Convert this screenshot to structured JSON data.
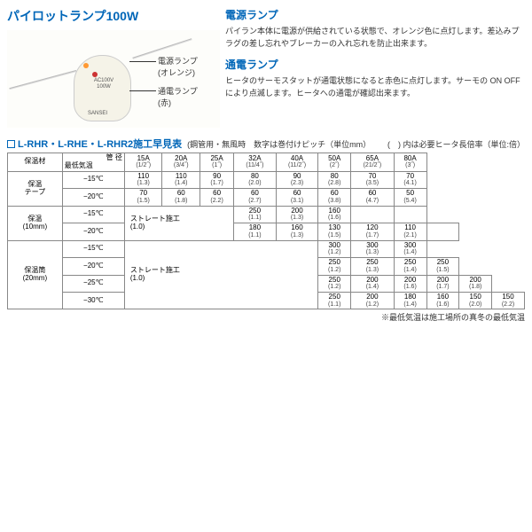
{
  "product_title": "パイロットランプ100W",
  "callouts": {
    "power": "電源ランプ\n(オレンジ)",
    "current": "通電ランプ\n(赤)"
  },
  "device": {
    "spec1": "AC100V",
    "spec2": "100W",
    "brand": "SANSEI"
  },
  "descriptions": {
    "power_heading": "電源ランプ",
    "power_text": "パイラン本体に電源が供給されている状態で、オレンジ色に点灯します。差込みプラグの差し忘れやブレーカーの入れ忘れを防止出来ます。",
    "current_heading": "通電ランプ",
    "current_text": "ヒータのサーモスタットが通電状態になると赤色に点灯します。サーモの ON OFF により点滅します。ヒータへの通電が確認出来ます。"
  },
  "table": {
    "title": "L-RHR・L-RHE・L-RHR2施工早見表",
    "subtitle": "(鋼管用・無風時　数字は巻付けピッチ（単位mm）",
    "note_right": "(　) 内は必要ヒータ長倍率（単位:倍）",
    "col_labels": {
      "material": "保温材",
      "pipe": "管 径",
      "temp": "最低気温"
    },
    "cols": [
      {
        "m": "15A",
        "s": "(1/2˝)"
      },
      {
        "m": "20A",
        "s": "(3/4˝)"
      },
      {
        "m": "25A",
        "s": "(1˝)"
      },
      {
        "m": "32A",
        "s": "(11/4˝)"
      },
      {
        "m": "40A",
        "s": "(11/2˝)"
      },
      {
        "m": "50A",
        "s": "(2˝)"
      },
      {
        "m": "65A",
        "s": "(21/2˝)"
      },
      {
        "m": "80A",
        "s": "(3˝)"
      }
    ],
    "groups": [
      {
        "name": "保温\nテープ",
        "rows": [
          {
            "t": "−15℃",
            "c": [
              {
                "m": "110",
                "s": "(1.3)"
              },
              {
                "m": "110",
                "s": "(1.4)"
              },
              {
                "m": "90",
                "s": "(1.7)"
              },
              {
                "m": "80",
                "s": "(2.0)"
              },
              {
                "m": "90",
                "s": "(2.3)"
              },
              {
                "m": "80",
                "s": "(2.8)"
              },
              {
                "m": "70",
                "s": "(3.5)"
              },
              {
                "m": "70",
                "s": "(4.1)"
              }
            ]
          },
          {
            "t": "−20℃",
            "c": [
              {
                "m": "70",
                "s": "(1.5)"
              },
              {
                "m": "60",
                "s": "(1.8)"
              },
              {
                "m": "60",
                "s": "(2.2)"
              },
              {
                "m": "60",
                "s": "(2.7)"
              },
              {
                "m": "60",
                "s": "(3.1)"
              },
              {
                "m": "60",
                "s": "(3.8)"
              },
              {
                "m": "60",
                "s": "(4.7)"
              },
              {
                "m": "50",
                "s": "(5.4)"
              }
            ]
          }
        ]
      },
      {
        "name": "保温\n(10mm)",
        "rows": [
          {
            "t": "−15℃",
            "c": [
              "span:ストレート施工\n(1.0)",
              "span",
              "span",
              {
                "m": "250",
                "s": "(1.1)"
              },
              {
                "m": "200",
                "s": "(1.3)"
              },
              {
                "m": "160",
                "s": "(1.6)"
              },
              "",
              ""
            ]
          },
          {
            "t": "−20℃",
            "c": [
              "spanv",
              "spanv",
              {
                "m": "180",
                "s": "(1.1)"
              },
              {
                "m": "160",
                "s": "(1.3)"
              },
              {
                "m": "130",
                "s": "(1.5)"
              },
              {
                "m": "120",
                "s": "(1.7)"
              },
              {
                "m": "110",
                "s": "(2.1)"
              },
              ""
            ]
          }
        ]
      },
      {
        "name": "保温筒\n(20mm)",
        "rows": [
          {
            "t": "−15℃",
            "c": [
              "span:ストレート施工\n(1.0)",
              "span",
              "span",
              "span",
              "span",
              {
                "m": "300",
                "s": "(1.2)"
              },
              {
                "m": "300",
                "s": "(1.3)"
              },
              {
                "m": "300",
                "s": "(1.4)"
              }
            ]
          },
          {
            "t": "−20℃",
            "c": [
              "spanv",
              "spanv",
              "spanv",
              "spanv",
              {
                "m": "250",
                "s": "(1.2)"
              },
              {
                "m": "250",
                "s": "(1.3)"
              },
              {
                "m": "250",
                "s": "(1.4)"
              },
              {
                "m": "250",
                "s": "(1.5)"
              }
            ]
          },
          {
            "t": "−25℃",
            "c": [
              "spanv",
              "spanv",
              "spanv",
              {
                "m": "250",
                "s": "(1.2)"
              },
              {
                "m": "200",
                "s": "(1.4)"
              },
              {
                "m": "200",
                "s": "(1.6)"
              },
              {
                "m": "200",
                "s": "(1.7)"
              },
              {
                "m": "200",
                "s": "(1.8)"
              }
            ]
          },
          {
            "t": "−30℃",
            "c": [
              "spanv",
              "spanv",
              {
                "m": "250",
                "s": "(1.1)"
              },
              {
                "m": "200",
                "s": "(1.2)"
              },
              {
                "m": "180",
                "s": "(1.4)"
              },
              {
                "m": "160",
                "s": "(1.6)"
              },
              {
                "m": "150",
                "s": "(2.0)"
              },
              {
                "m": "150",
                "s": "(2.2)"
              }
            ]
          }
        ]
      }
    ],
    "footnote": "※最低気温は施工場所の真冬の最低気温"
  }
}
